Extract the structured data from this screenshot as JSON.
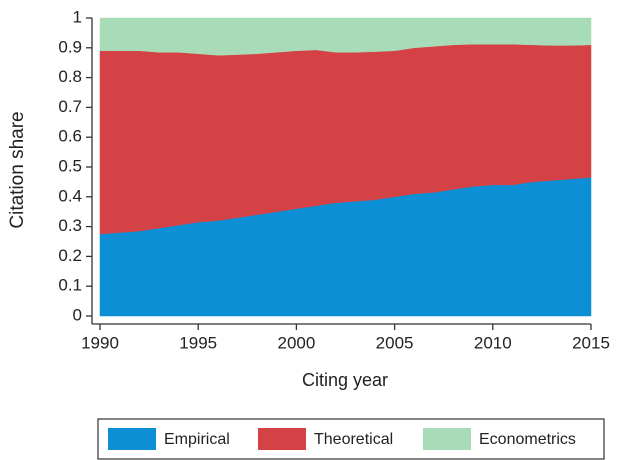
{
  "chart_data": {
    "type": "stacked_area",
    "x_label": "Citing year",
    "y_label": "Citation share",
    "x": [
      1990,
      1991,
      1992,
      1993,
      1994,
      1995,
      1996,
      1997,
      1998,
      1999,
      2000,
      2001,
      2002,
      2003,
      2004,
      2005,
      2006,
      2007,
      2008,
      2009,
      2010,
      2011,
      2012,
      2013,
      2014,
      2015
    ],
    "series": [
      {
        "name": "Empirical",
        "color": "#0d8fd5",
        "values": [
          0.275,
          0.28,
          0.285,
          0.295,
          0.305,
          0.315,
          0.32,
          0.33,
          0.34,
          0.35,
          0.36,
          0.37,
          0.38,
          0.385,
          0.39,
          0.4,
          0.41,
          0.415,
          0.425,
          0.435,
          0.44,
          0.44,
          0.45,
          0.455,
          0.46,
          0.465
        ]
      },
      {
        "name": "Theoretical",
        "color": "#d44245",
        "values": [
          0.615,
          0.61,
          0.605,
          0.59,
          0.58,
          0.565,
          0.555,
          0.547,
          0.54,
          0.535,
          0.53,
          0.523,
          0.505,
          0.5,
          0.497,
          0.49,
          0.49,
          0.49,
          0.485,
          0.477,
          0.472,
          0.472,
          0.46,
          0.453,
          0.448,
          0.445
        ]
      },
      {
        "name": "Econometrics",
        "color": "#a8dcb9",
        "values": [
          0.11,
          0.11,
          0.11,
          0.115,
          0.115,
          0.12,
          0.125,
          0.123,
          0.12,
          0.115,
          0.11,
          0.107,
          0.115,
          0.115,
          0.113,
          0.11,
          0.1,
          0.095,
          0.09,
          0.088,
          0.088,
          0.088,
          0.09,
          0.092,
          0.092,
          0.09
        ]
      }
    ],
    "xlim": [
      1990,
      2015
    ],
    "xticks": [
      1990,
      1995,
      2000,
      2005,
      2010,
      2015
    ],
    "ylim": [
      0,
      1
    ],
    "yticks": [
      0,
      0.1,
      0.2,
      0.3,
      0.4,
      0.5,
      0.6,
      0.7,
      0.8,
      0.9,
      1
    ],
    "grid": false,
    "legend": "bottom"
  }
}
